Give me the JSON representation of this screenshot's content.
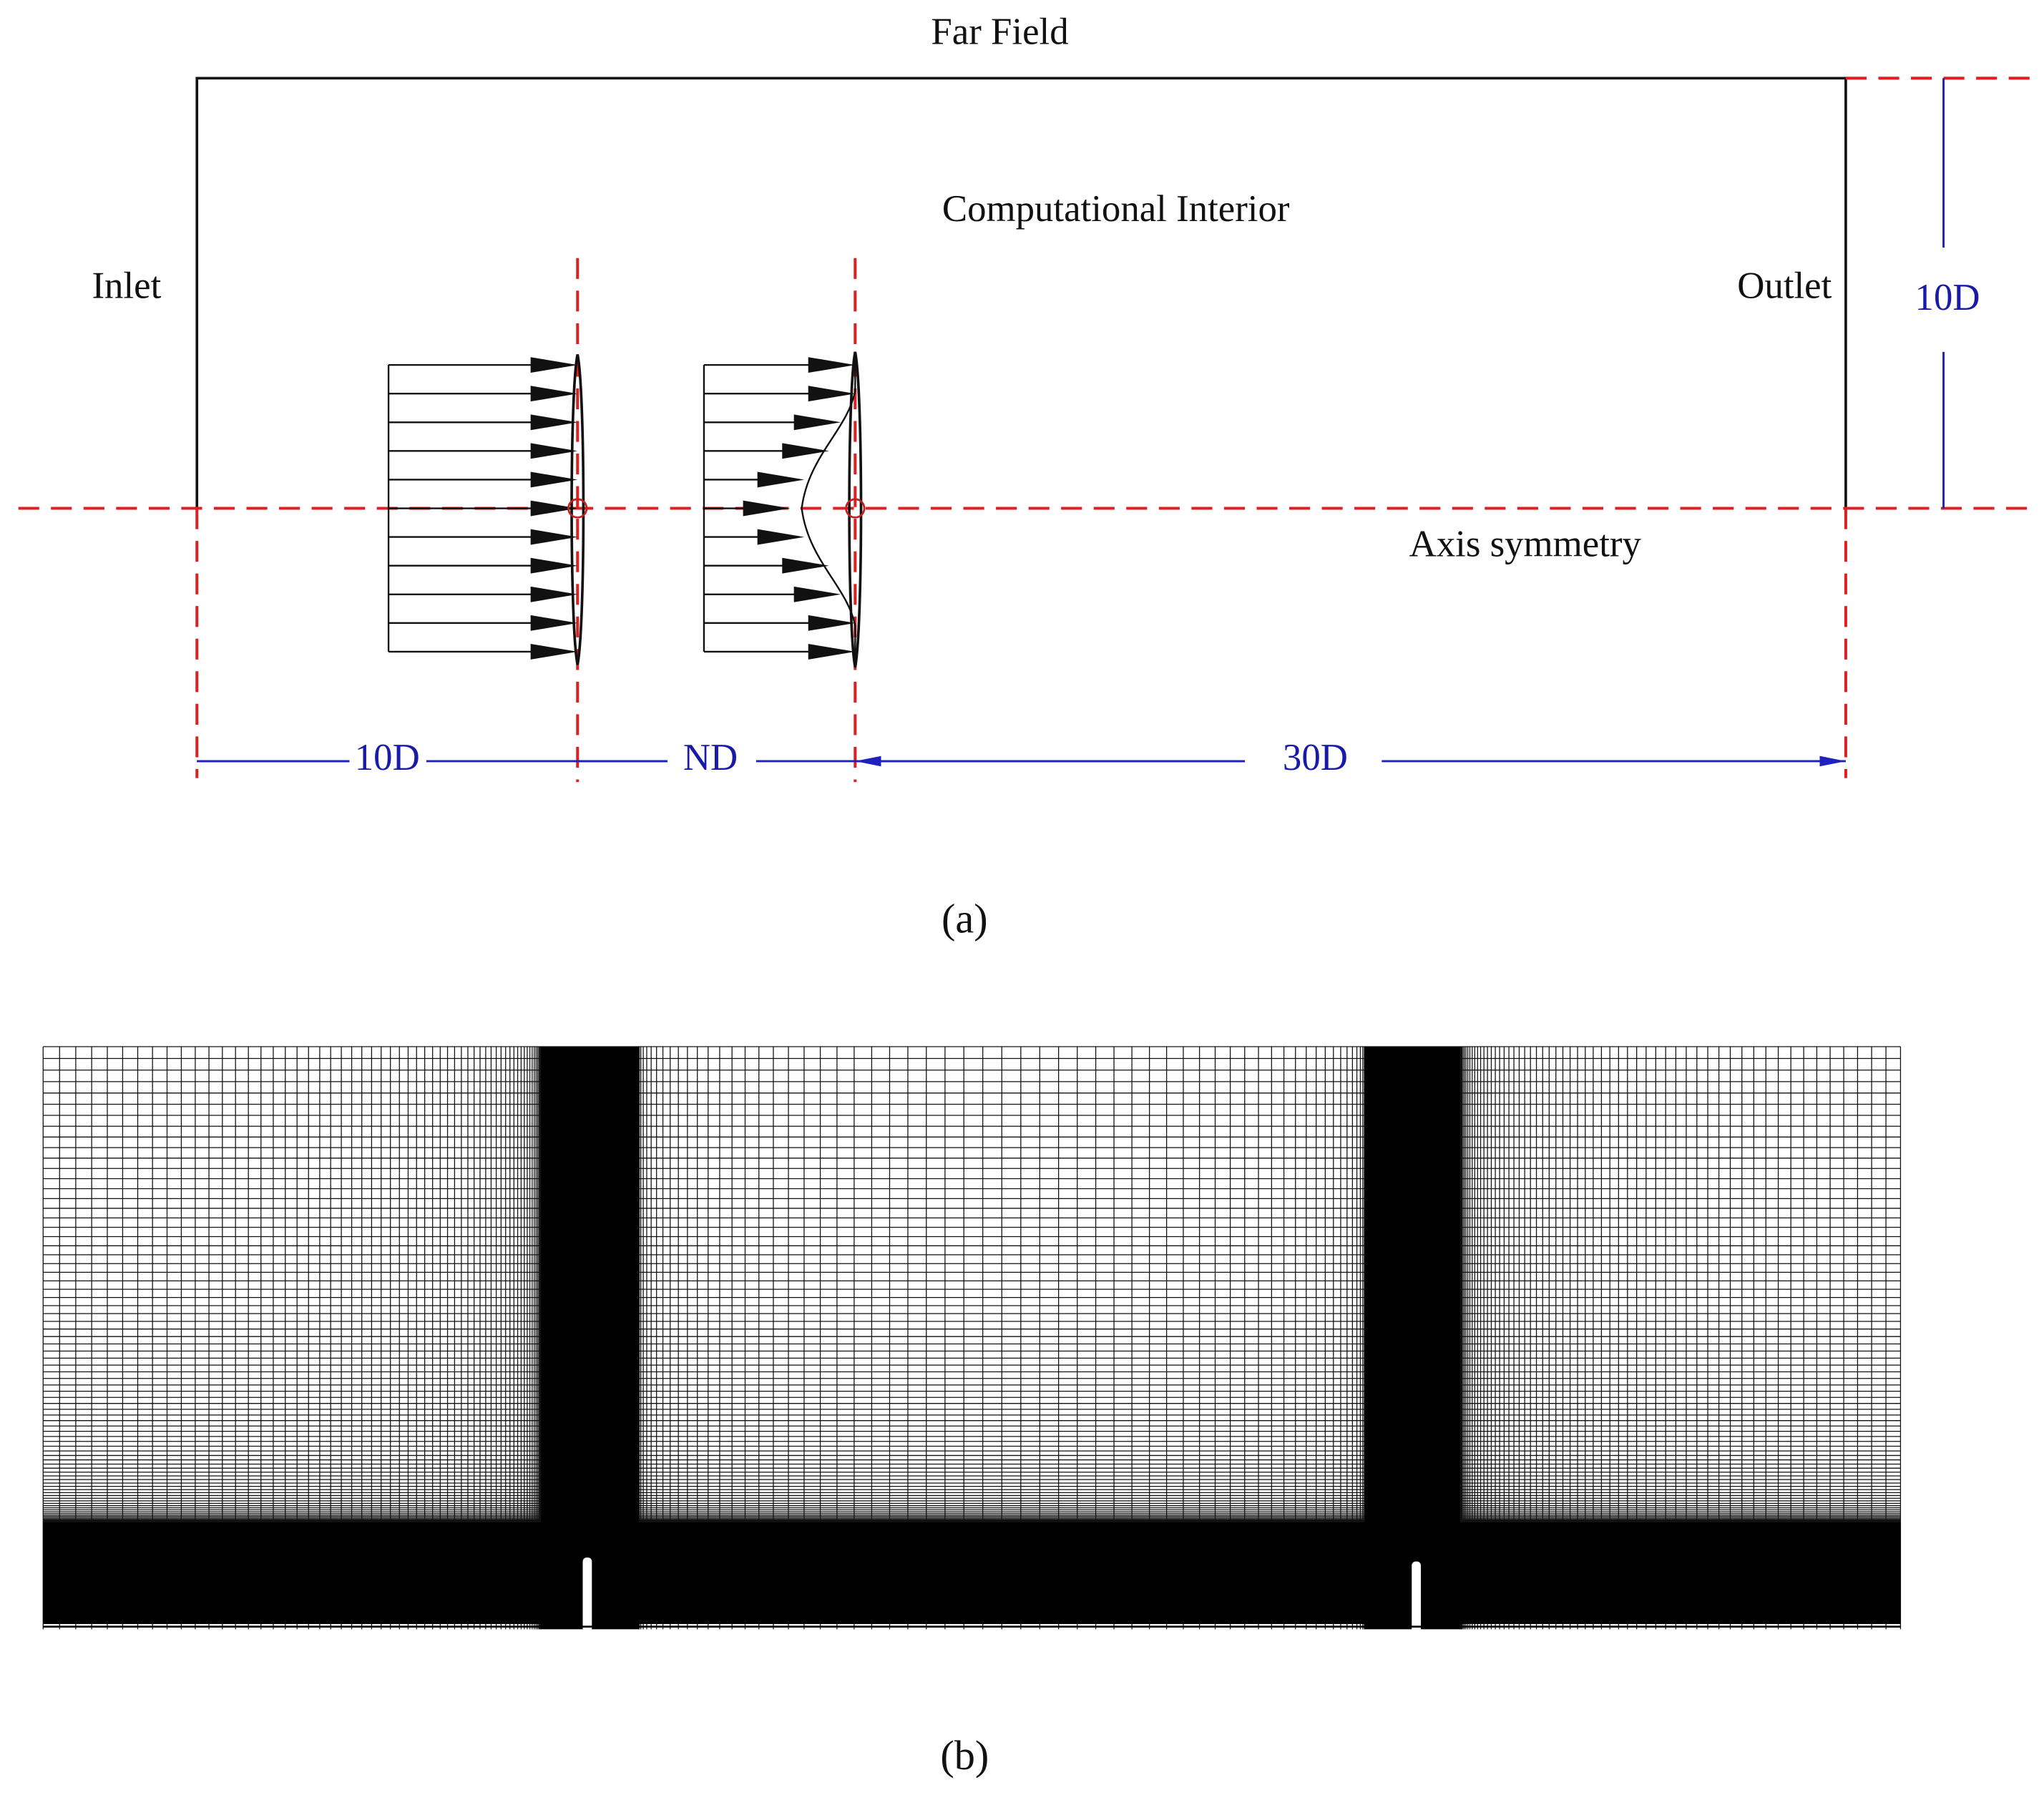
{
  "diagram": {
    "labels": {
      "far_field": "Far Field",
      "interior": "Computational Interior",
      "inlet": "Inlet",
      "outlet": "Outlet",
      "axis": "Axis symmetry"
    },
    "dimensions": {
      "height": "10D",
      "upstream": "10D",
      "spacing": "ND",
      "downstream": "30D"
    }
  },
  "captions": {
    "a": "(a)",
    "b": "(b)"
  }
}
